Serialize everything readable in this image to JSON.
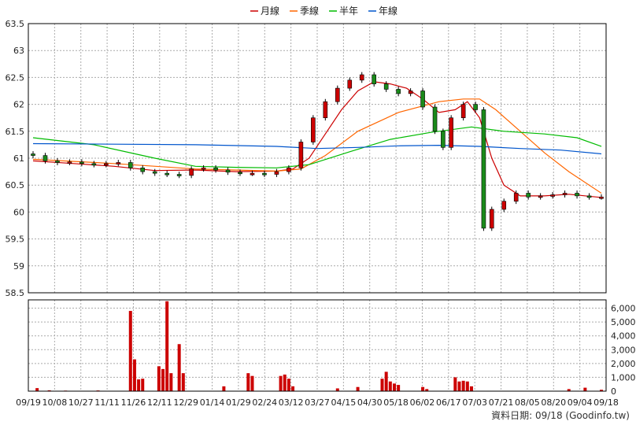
{
  "chart_data": {
    "type": "candlestick",
    "price_axis": {
      "min": 58.5,
      "max": 63.5,
      "ticks": [
        "63.5",
        "63",
        "62.5",
        "62",
        "61.5",
        "61",
        "60.5",
        "60",
        "59.5",
        "59",
        "58.5"
      ]
    },
    "volume_axis": {
      "min": 0,
      "max": 6600,
      "ticks": [
        "6,000",
        "5,000",
        "4,000",
        "3,000",
        "2,000",
        "1,000",
        "0"
      ]
    },
    "x_tick_labels": [
      "09/19",
      "10/08",
      "10/27",
      "11/11",
      "11/26",
      "12/11",
      "12/29",
      "01/14",
      "01/29",
      "02/24",
      "03/12",
      "03/27",
      "04/15",
      "04/30",
      "05/18",
      "06/02",
      "06/17",
      "07/03",
      "07/21",
      "08/05",
      "08/20",
      "09/04",
      "09/18"
    ],
    "legend": [
      {
        "name": "月線",
        "color": "#cc0000"
      },
      {
        "name": "季線",
        "color": "#ff6600"
      },
      {
        "name": "半年",
        "color": "#00bb00"
      },
      {
        "name": "年線",
        "color": "#0055cc"
      }
    ],
    "close_series": [
      {
        "d": 0,
        "v": 61.05
      },
      {
        "d": 3,
        "v": 60.95
      },
      {
        "d": 6,
        "v": 60.92
      },
      {
        "d": 9,
        "v": 60.93
      },
      {
        "d": 12,
        "v": 60.9
      },
      {
        "d": 15,
        "v": 60.88
      },
      {
        "d": 18,
        "v": 60.9
      },
      {
        "d": 21,
        "v": 60.92
      },
      {
        "d": 24,
        "v": 60.82
      },
      {
        "d": 27,
        "v": 60.75
      },
      {
        "d": 30,
        "v": 60.72
      },
      {
        "d": 33,
        "v": 60.7
      },
      {
        "d": 36,
        "v": 60.68
      },
      {
        "d": 39,
        "v": 60.8
      },
      {
        "d": 42,
        "v": 60.82
      },
      {
        "d": 45,
        "v": 60.78
      },
      {
        "d": 48,
        "v": 60.74
      },
      {
        "d": 51,
        "v": 60.72
      },
      {
        "d": 54,
        "v": 60.72
      },
      {
        "d": 57,
        "v": 60.7
      },
      {
        "d": 60,
        "v": 60.75
      },
      {
        "d": 63,
        "v": 60.82
      },
      {
        "d": 66,
        "v": 61.3
      },
      {
        "d": 69,
        "v": 61.75
      },
      {
        "d": 72,
        "v": 62.05
      },
      {
        "d": 75,
        "v": 62.3
      },
      {
        "d": 78,
        "v": 62.45
      },
      {
        "d": 81,
        "v": 62.55
      },
      {
        "d": 84,
        "v": 62.38
      },
      {
        "d": 87,
        "v": 62.28
      },
      {
        "d": 90,
        "v": 62.2
      },
      {
        "d": 93,
        "v": 62.25
      },
      {
        "d": 96,
        "v": 61.95
      },
      {
        "d": 99,
        "v": 61.5
      },
      {
        "d": 101,
        "v": 61.2
      },
      {
        "d": 103,
        "v": 61.75
      },
      {
        "d": 106,
        "v": 62.0
      },
      {
        "d": 109,
        "v": 61.9
      },
      {
        "d": 111,
        "v": 59.7
      },
      {
        "d": 113,
        "v": 60.05
      },
      {
        "d": 116,
        "v": 60.2
      },
      {
        "d": 119,
        "v": 60.35
      },
      {
        "d": 122,
        "v": 60.28
      },
      {
        "d": 125,
        "v": 60.3
      },
      {
        "d": 128,
        "v": 60.32
      },
      {
        "d": 131,
        "v": 60.35
      },
      {
        "d": 134,
        "v": 60.3
      },
      {
        "d": 137,
        "v": 60.28
      },
      {
        "d": 140,
        "v": 60.28
      }
    ],
    "ma_series": [
      {
        "name": "月線",
        "points": [
          {
            "d": 0,
            "v": 60.95
          },
          {
            "d": 10,
            "v": 60.9
          },
          {
            "d": 20,
            "v": 60.85
          },
          {
            "d": 30,
            "v": 60.77
          },
          {
            "d": 40,
            "v": 60.78
          },
          {
            "d": 50,
            "v": 60.75
          },
          {
            "d": 60,
            "v": 60.76
          },
          {
            "d": 64,
            "v": 60.8
          },
          {
            "d": 68,
            "v": 61.0
          },
          {
            "d": 72,
            "v": 61.45
          },
          {
            "d": 76,
            "v": 61.9
          },
          {
            "d": 80,
            "v": 62.25
          },
          {
            "d": 84,
            "v": 62.42
          },
          {
            "d": 88,
            "v": 62.38
          },
          {
            "d": 92,
            "v": 62.3
          },
          {
            "d": 96,
            "v": 62.1
          },
          {
            "d": 100,
            "v": 61.85
          },
          {
            "d": 104,
            "v": 61.9
          },
          {
            "d": 107,
            "v": 62.05
          },
          {
            "d": 110,
            "v": 61.75
          },
          {
            "d": 113,
            "v": 61.0
          },
          {
            "d": 116,
            "v": 60.5
          },
          {
            "d": 120,
            "v": 60.3
          },
          {
            "d": 126,
            "v": 60.3
          },
          {
            "d": 132,
            "v": 60.33
          },
          {
            "d": 140,
            "v": 60.27
          }
        ]
      },
      {
        "name": "季線",
        "points": [
          {
            "d": 0,
            "v": 60.98
          },
          {
            "d": 20,
            "v": 60.9
          },
          {
            "d": 40,
            "v": 60.8
          },
          {
            "d": 60,
            "v": 60.76
          },
          {
            "d": 66,
            "v": 60.8
          },
          {
            "d": 72,
            "v": 61.05
          },
          {
            "d": 80,
            "v": 61.5
          },
          {
            "d": 90,
            "v": 61.85
          },
          {
            "d": 100,
            "v": 62.05
          },
          {
            "d": 106,
            "v": 62.1
          },
          {
            "d": 110,
            "v": 62.1
          },
          {
            "d": 114,
            "v": 61.9
          },
          {
            "d": 120,
            "v": 61.5
          },
          {
            "d": 126,
            "v": 61.1
          },
          {
            "d": 132,
            "v": 60.75
          },
          {
            "d": 140,
            "v": 60.35
          }
        ]
      },
      {
        "name": "半年",
        "points": [
          {
            "d": 0,
            "v": 61.38
          },
          {
            "d": 15,
            "v": 61.25
          },
          {
            "d": 30,
            "v": 61.0
          },
          {
            "d": 40,
            "v": 60.85
          },
          {
            "d": 50,
            "v": 60.83
          },
          {
            "d": 60,
            "v": 60.82
          },
          {
            "d": 68,
            "v": 60.88
          },
          {
            "d": 78,
            "v": 61.12
          },
          {
            "d": 88,
            "v": 61.35
          },
          {
            "d": 98,
            "v": 61.48
          },
          {
            "d": 108,
            "v": 61.58
          },
          {
            "d": 116,
            "v": 61.5
          },
          {
            "d": 126,
            "v": 61.45
          },
          {
            "d": 134,
            "v": 61.38
          },
          {
            "d": 140,
            "v": 61.22
          }
        ]
      },
      {
        "name": "年線",
        "points": [
          {
            "d": 0,
            "v": 61.27
          },
          {
            "d": 20,
            "v": 61.26
          },
          {
            "d": 40,
            "v": 61.25
          },
          {
            "d": 60,
            "v": 61.22
          },
          {
            "d": 70,
            "v": 61.18
          },
          {
            "d": 80,
            "v": 61.2
          },
          {
            "d": 90,
            "v": 61.23
          },
          {
            "d": 100,
            "v": 61.24
          },
          {
            "d": 110,
            "v": 61.22
          },
          {
            "d": 120,
            "v": 61.18
          },
          {
            "d": 130,
            "v": 61.15
          },
          {
            "d": 140,
            "v": 61.08
          }
        ]
      }
    ],
    "volume_bars": [
      {
        "d": 1,
        "v": 220
      },
      {
        "d": 4,
        "v": 60
      },
      {
        "d": 8,
        "v": 40
      },
      {
        "d": 16,
        "v": 50
      },
      {
        "d": 24,
        "v": 5800
      },
      {
        "d": 25,
        "v": 2300
      },
      {
        "d": 26,
        "v": 850
      },
      {
        "d": 27,
        "v": 900
      },
      {
        "d": 31,
        "v": 1800
      },
      {
        "d": 32,
        "v": 1600
      },
      {
        "d": 33,
        "v": 6500
      },
      {
        "d": 34,
        "v": 1300
      },
      {
        "d": 36,
        "v": 3400
      },
      {
        "d": 37,
        "v": 1300
      },
      {
        "d": 47,
        "v": 350
      },
      {
        "d": 53,
        "v": 1300
      },
      {
        "d": 54,
        "v": 1100
      },
      {
        "d": 61,
        "v": 1100
      },
      {
        "d": 62,
        "v": 1200
      },
      {
        "d": 63,
        "v": 900
      },
      {
        "d": 64,
        "v": 350
      },
      {
        "d": 75,
        "v": 200
      },
      {
        "d": 80,
        "v": 300
      },
      {
        "d": 86,
        "v": 900
      },
      {
        "d": 87,
        "v": 1400
      },
      {
        "d": 88,
        "v": 700
      },
      {
        "d": 89,
        "v": 550
      },
      {
        "d": 90,
        "v": 450
      },
      {
        "d": 96,
        "v": 300
      },
      {
        "d": 97,
        "v": 150
      },
      {
        "d": 104,
        "v": 1000
      },
      {
        "d": 105,
        "v": 700
      },
      {
        "d": 106,
        "v": 750
      },
      {
        "d": 107,
        "v": 700
      },
      {
        "d": 108,
        "v": 350
      },
      {
        "d": 132,
        "v": 150
      },
      {
        "d": 136,
        "v": 250
      },
      {
        "d": 140,
        "v": 100
      }
    ]
  },
  "footer": {
    "text": "資料日期: 09/18  (Goodinfo.tw)"
  },
  "colors": {
    "up": "#cc0000",
    "down": "#1a8a1a",
    "grid": "#aaaaaa",
    "border": "#000000"
  }
}
